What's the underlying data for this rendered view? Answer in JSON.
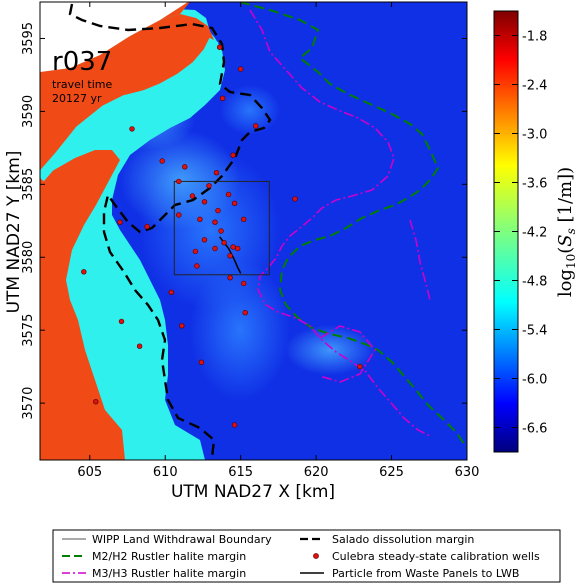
{
  "chart_data": {
    "type": "heatmap",
    "realization": "r037",
    "travel_time_label": "travel time",
    "travel_time_value": "20127 yr",
    "xlabel": "UTM NAD27 X [km]",
    "ylabel": "UTM NAD27 Y [km]",
    "xlim": [
      601.7,
      630
    ],
    "ylim": [
      3566.1,
      3597.5
    ],
    "xticks": [
      "605",
      "610",
      "615",
      "620",
      "625",
      "630"
    ],
    "xtick_values": [
      605,
      610,
      615,
      620,
      625,
      630
    ],
    "yticks": [
      "3570",
      "3575",
      "3580",
      "3585",
      "3590",
      "3595"
    ],
    "ytick_values": [
      3570,
      3575,
      3580,
      3585,
      3590,
      3595
    ],
    "colorbar": {
      "label": "log10(Ss [1/m])",
      "range": [
        -6.9,
        -1.5
      ],
      "ticks": [
        "-1.8",
        "-2.4",
        "-3.0",
        "-3.6",
        "-4.2",
        "-4.8",
        "-5.4",
        "-6.0",
        "-6.6"
      ],
      "tick_values": [
        -1.8,
        -2.4,
        -3.0,
        -3.6,
        -4.2,
        -4.8,
        -5.4,
        -6.0,
        -6.6
      ],
      "colormap": "jet"
    },
    "wipp_boundary": {
      "x": [
        610.6,
        616.9
      ],
      "y": [
        3578.8,
        3585.2
      ]
    },
    "wells": [
      {
        "x": 613.6,
        "y": 3594.4
      },
      {
        "x": 615.0,
        "y": 3592.9
      },
      {
        "x": 613.8,
        "y": 3590.9
      },
      {
        "x": 616.0,
        "y": 3589.0
      },
      {
        "x": 607.8,
        "y": 3588.8
      },
      {
        "x": 614.5,
        "y": 3587.0
      },
      {
        "x": 609.8,
        "y": 3586.6
      },
      {
        "x": 611.3,
        "y": 3586.2
      },
      {
        "x": 613.4,
        "y": 3585.8
      },
      {
        "x": 610.9,
        "y": 3585.2
      },
      {
        "x": 612.9,
        "y": 3584.9
      },
      {
        "x": 611.8,
        "y": 3584.2
      },
      {
        "x": 614.2,
        "y": 3584.3
      },
      {
        "x": 618.6,
        "y": 3584.0
      },
      {
        "x": 612.6,
        "y": 3583.8
      },
      {
        "x": 613.5,
        "y": 3583.2
      },
      {
        "x": 614.6,
        "y": 3583.7
      },
      {
        "x": 610.9,
        "y": 3582.9
      },
      {
        "x": 612.3,
        "y": 3582.6
      },
      {
        "x": 613.3,
        "y": 3582.4
      },
      {
        "x": 615.2,
        "y": 3582.6
      },
      {
        "x": 607.0,
        "y": 3582.4
      },
      {
        "x": 608.8,
        "y": 3582.1
      },
      {
        "x": 613.7,
        "y": 3581.8
      },
      {
        "x": 612.6,
        "y": 3581.2
      },
      {
        "x": 613.9,
        "y": 3581.0
      },
      {
        "x": 614.5,
        "y": 3580.7
      },
      {
        "x": 612.0,
        "y": 3580.4
      },
      {
        "x": 613.3,
        "y": 3580.6
      },
      {
        "x": 614.8,
        "y": 3580.6
      },
      {
        "x": 614.3,
        "y": 3580.1
      },
      {
        "x": 612.1,
        "y": 3579.4
      },
      {
        "x": 614.3,
        "y": 3578.6
      },
      {
        "x": 615.2,
        "y": 3578.2
      },
      {
        "x": 610.4,
        "y": 3577.6
      },
      {
        "x": 604.6,
        "y": 3579.0
      },
      {
        "x": 615.3,
        "y": 3576.2
      },
      {
        "x": 607.1,
        "y": 3575.6
      },
      {
        "x": 611.1,
        "y": 3575.3
      },
      {
        "x": 608.3,
        "y": 3573.9
      },
      {
        "x": 612.4,
        "y": 3572.8
      },
      {
        "x": 622.9,
        "y": 3572.5
      },
      {
        "x": 605.4,
        "y": 3570.1
      },
      {
        "x": 614.6,
        "y": 3568.5
      }
    ],
    "legend": [
      {
        "label": "WIPP Land Withdrawal Boundary",
        "style": "solid",
        "color": "#555555"
      },
      {
        "label": "Salado dissolution margin",
        "style": "dashed",
        "color": "#000000"
      },
      {
        "label": "M2/H2 Rustler halite margin",
        "style": "dashed",
        "color": "#008000"
      },
      {
        "label": "Culebra steady-state calibration wells",
        "style": "marker",
        "color": "#dd1111"
      },
      {
        "label": "M3/H3 Rustler halite margin",
        "style": "dashdot",
        "color": "#cc00cc"
      },
      {
        "label": "Particle from Waste Panels to LWB",
        "style": "solid",
        "color": "#000000"
      }
    ]
  }
}
